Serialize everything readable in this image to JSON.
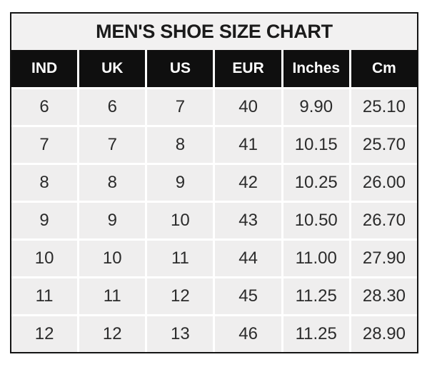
{
  "chart_data": {
    "type": "table",
    "title": "MEN'S SHOE SIZE CHART",
    "columns": [
      "IND",
      "UK",
      "US",
      "EUR",
      "Inches",
      "Cm"
    ],
    "rows": [
      [
        "6",
        "6",
        "7",
        "40",
        "9.90",
        "25.10"
      ],
      [
        "7",
        "7",
        "8",
        "41",
        "10.15",
        "25.70"
      ],
      [
        "8",
        "8",
        "9",
        "42",
        "10.25",
        "26.00"
      ],
      [
        "9",
        "9",
        "10",
        "43",
        "10.50",
        "26.70"
      ],
      [
        "10",
        "10",
        "11",
        "44",
        "11.00",
        "27.90"
      ],
      [
        "11",
        "11",
        "12",
        "45",
        "11.25",
        "28.30"
      ],
      [
        "12",
        "12",
        "13",
        "46",
        "11.25",
        "28.90"
      ]
    ]
  },
  "colors": {
    "title_bg": "#f2f1f1",
    "title_text": "#1b1b1b",
    "header_bg": "#0f0f0f",
    "header_text": "#ffffff",
    "cell_bg": "#efeeee",
    "cell_text": "#2b2b2b",
    "separator": "#ffffff",
    "border": "#141414"
  }
}
